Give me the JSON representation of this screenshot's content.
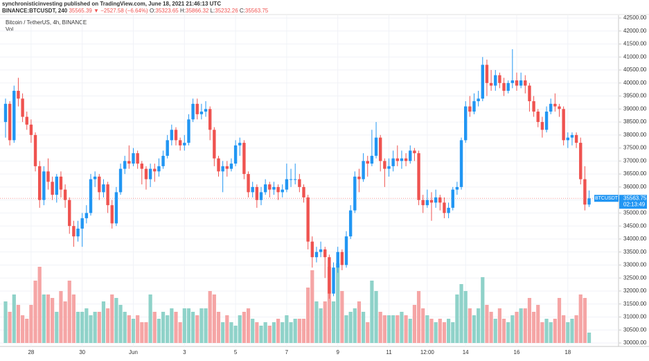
{
  "header": {
    "publisher": "synchronisticinvesting published on TradingView.com, June 18, 2021 21:46:13 UTC",
    "symbol": "BINANCE:BTCUSDT, 240",
    "change": "35565.39 ▼ −2527.58 (−6.64%)",
    "o_label": "O:",
    "o": "35323.65",
    "h_label": "H:",
    "h": "35866.32",
    "l_label": "L:",
    "l": "35232.26",
    "c_label": "C:",
    "c": "35563.75"
  },
  "chart_data": {
    "type": "candlestick",
    "title": "Bitcoin / TetherUS, 4h, BINANCE",
    "volume_label": "Vol",
    "up_color": "#2196f3",
    "down_color": "#ef5350",
    "volume_up_color": "#8fd2c9",
    "volume_down_color": "#f5a5a5",
    "grid": true,
    "price_tag": {
      "symbol": "BTCUSDT",
      "price": "35563.75",
      "countdown": "02:13:49"
    },
    "categories": [
      null,
      null,
      null,
      null,
      null,
      null,
      "28",
      null,
      null,
      null,
      null,
      null,
      null,
      null,
      null,
      null,
      null,
      null,
      "30",
      null,
      null,
      null,
      null,
      null,
      null,
      null,
      null,
      null,
      null,
      null,
      "Jun",
      null,
      null,
      null,
      null,
      null,
      null,
      null,
      null,
      null,
      null,
      null,
      "3",
      null,
      null,
      null,
      null,
      null,
      null,
      null,
      null,
      null,
      null,
      null,
      "5",
      null,
      null,
      null,
      null,
      null,
      null,
      null,
      null,
      null,
      null,
      null,
      "7",
      null,
      null,
      null,
      null,
      null,
      null,
      null,
      null,
      null,
      null,
      null,
      "9",
      null,
      null,
      null,
      null,
      null,
      null,
      null,
      null,
      null,
      null,
      null,
      "11",
      null,
      null,
      null,
      null,
      null,
      null,
      null,
      null,
      "12:00",
      null,
      null,
      null,
      null,
      null,
      null,
      null,
      null,
      "14",
      null,
      null,
      null,
      null,
      null,
      null,
      null,
      null,
      null,
      null,
      null,
      "16",
      null,
      null,
      null,
      null,
      null,
      null,
      null,
      null,
      null,
      null,
      null,
      "18",
      null,
      null,
      null,
      null,
      null
    ],
    "open": [
      38500,
      39200,
      37800,
      39700,
      39400,
      38700,
      38400,
      38000,
      36800,
      35500,
      36600,
      36200,
      35700,
      36400,
      35900,
      35500,
      34500,
      34100,
      34400,
      34800,
      35000,
      36300,
      36400,
      35800,
      36100,
      35300,
      34600,
      35800,
      36700,
      37000,
      36900,
      37300,
      36900,
      36700,
      36300,
      36700,
      36600,
      36800,
      37200,
      37800,
      38200,
      37800,
      37600,
      37700,
      38600,
      39200,
      38800,
      38900,
      39000,
      38200,
      37100,
      36600,
      36800,
      36700,
      36900,
      37600,
      37700,
      36500,
      35800,
      36000,
      35500,
      35800,
      36100,
      35900,
      36000,
      35800,
      35900,
      36300,
      36300,
      36300,
      36000,
      35600,
      33900,
      33300,
      33500,
      33600,
      33300,
      31900,
      32900,
      33500,
      33000,
      34100,
      35100,
      36400,
      36300,
      37000,
      36900,
      37200,
      37900,
      37000,
      36700,
      36800,
      37100,
      37000,
      37100,
      37000,
      37400,
      37300,
      35500,
      35300,
      35500,
      35400,
      35600,
      35400,
      35000,
      35200,
      35900,
      36000,
      37800,
      39100,
      38900,
      39300,
      39400,
      40700,
      40000,
      39900,
      40300,
      40000,
      39700,
      40000,
      40100,
      39900,
      40100,
      39900,
      39300,
      38900,
      38500,
      38200,
      38900,
      39200,
      39100,
      39000,
      37800,
      37900,
      38000,
      37700,
      36300,
      35323.65
    ],
    "high": [
      39400,
      39300,
      39900,
      40200,
      39600,
      38900,
      38600,
      38100,
      37000,
      36800,
      37100,
      36400,
      36500,
      36600,
      36100,
      35600,
      34700,
      34700,
      35000,
      35300,
      36500,
      36600,
      36500,
      36300,
      36200,
      35500,
      36000,
      36900,
      37200,
      37600,
      37500,
      37400,
      37000,
      36800,
      36900,
      36900,
      37100,
      37400,
      38000,
      38400,
      38300,
      37900,
      38000,
      38800,
      39400,
      39400,
      39200,
      39300,
      39100,
      38300,
      37200,
      37000,
      37000,
      37100,
      37800,
      37900,
      37800,
      36600,
      36200,
      36100,
      36000,
      36300,
      36200,
      36200,
      36100,
      36100,
      36900,
      36700,
      36900,
      36500,
      36100,
      35700,
      34100,
      33700,
      33900,
      33700,
      33400,
      33100,
      33700,
      33600,
      34300,
      35300,
      36600,
      36700,
      37300,
      37200,
      38200,
      38500,
      38000,
      37100,
      37100,
      37400,
      37600,
      37400,
      37300,
      37600,
      37500,
      37400,
      35700,
      35900,
      35800,
      35900,
      35700,
      35600,
      35400,
      36000,
      36200,
      37900,
      39300,
      39500,
      39600,
      39700,
      41000,
      40900,
      40500,
      40500,
      40400,
      40200,
      40100,
      41300,
      40400,
      40400,
      40300,
      40000,
      39500,
      39000,
      38700,
      39100,
      39400,
      39600,
      39200,
      39100,
      38100,
      38100,
      38100,
      37900,
      36800,
      35866.32
    ],
    "low": [
      37900,
      37600,
      37700,
      39100,
      38500,
      38200,
      37700,
      36600,
      35200,
      35300,
      35900,
      35500,
      35400,
      35600,
      35200,
      34200,
      33700,
      33900,
      33700,
      34600,
      34900,
      36000,
      35500,
      35600,
      35000,
      34400,
      34500,
      35700,
      36500,
      36700,
      36800,
      36700,
      36100,
      35900,
      36000,
      36200,
      36400,
      36700,
      37100,
      37600,
      37600,
      37400,
      37400,
      37600,
      38500,
      38600,
      38600,
      38700,
      37800,
      36800,
      36400,
      35800,
      36400,
      36600,
      36800,
      37200,
      36300,
      35600,
      35600,
      35200,
      35300,
      35700,
      35600,
      35700,
      35500,
      35600,
      35800,
      36000,
      36100,
      35800,
      35400,
      33600,
      32900,
      33100,
      33300,
      32500,
      31700,
      31800,
      32700,
      32800,
      32900,
      34000,
      35000,
      35800,
      36200,
      36400,
      36800,
      37100,
      36600,
      36000,
      36400,
      36600,
      36800,
      36700,
      36800,
      36900,
      37000,
      35300,
      35000,
      35200,
      34700,
      35200,
      35100,
      34800,
      34800,
      35100,
      35700,
      35900,
      37700,
      38700,
      38800,
      39100,
      39300,
      39500,
      39700,
      39700,
      39800,
      39500,
      39600,
      39800,
      39700,
      39800,
      39600,
      38900,
      38700,
      38300,
      37900,
      38100,
      38800,
      38900,
      38700,
      37600,
      37500,
      37600,
      37500,
      36100,
      35100,
      35232.26
    ],
    "close": [
      39200,
      37800,
      39700,
      39400,
      38700,
      38400,
      38000,
      36800,
      35500,
      36600,
      36200,
      35700,
      36400,
      35900,
      35500,
      34500,
      34100,
      34400,
      34800,
      35000,
      36300,
      36400,
      35800,
      36100,
      35300,
      34600,
      35800,
      36700,
      37000,
      36900,
      37300,
      36900,
      36700,
      36300,
      36700,
      36600,
      36800,
      37200,
      37800,
      38200,
      37800,
      37600,
      37700,
      38600,
      39200,
      38800,
      38900,
      39000,
      38200,
      37100,
      36600,
      36800,
      36700,
      36900,
      37600,
      37700,
      36500,
      35800,
      36000,
      35500,
      35800,
      36100,
      35900,
      36000,
      35800,
      35900,
      36300,
      36300,
      36300,
      36000,
      35600,
      33900,
      33300,
      33500,
      33600,
      33300,
      31900,
      32900,
      33500,
      33000,
      34100,
      35100,
      36400,
      36300,
      37000,
      36900,
      37200,
      37900,
      37000,
      36700,
      36800,
      37100,
      37000,
      37100,
      37000,
      37400,
      37300,
      35500,
      35300,
      35500,
      35400,
      35600,
      35400,
      35000,
      35200,
      35900,
      36000,
      37800,
      39100,
      38900,
      39300,
      39400,
      40700,
      40000,
      39900,
      40300,
      40000,
      39700,
      40000,
      40100,
      39900,
      40100,
      39900,
      39300,
      38900,
      38500,
      38200,
      38900,
      39200,
      39100,
      39000,
      37800,
      37900,
      38000,
      37700,
      36300,
      35323.65,
      35563.75
    ],
    "volume": [
      60,
      45,
      70,
      55,
      40,
      35,
      55,
      90,
      110,
      70,
      70,
      65,
      45,
      75,
      60,
      90,
      70,
      45,
      45,
      50,
      40,
      45,
      45,
      60,
      50,
      70,
      65,
      55,
      45,
      40,
      35,
      40,
      30,
      30,
      70,
      45,
      35,
      45,
      40,
      50,
      45,
      30,
      50,
      50,
      45,
      40,
      50,
      50,
      75,
      70,
      45,
      30,
      40,
      30,
      25,
      40,
      45,
      50,
      35,
      30,
      25,
      30,
      25,
      30,
      35,
      30,
      40,
      30,
      35,
      35,
      35,
      80,
      105,
      60,
      50,
      60,
      110,
      60,
      115,
      75,
      40,
      45,
      50,
      60,
      45,
      30,
      90,
      75,
      45,
      40,
      40,
      40,
      40,
      45,
      40,
      35,
      55,
      75,
      50,
      40,
      35,
      30,
      35,
      30,
      35,
      30,
      70,
      85,
      75,
      50,
      40,
      50,
      95,
      55,
      45,
      35,
      50,
      35,
      30,
      40,
      45,
      50,
      50,
      65,
      45,
      55,
      30,
      35,
      30,
      35,
      65,
      40,
      30,
      35,
      40,
      70,
      65,
      15
    ],
    "ylim": [
      30000,
      42500
    ],
    "yticks": [
      {
        "value": 30000,
        "label": "30000.00"
      },
      {
        "value": 30500,
        "label": "30500.00"
      },
      {
        "value": 31000,
        "label": "31000.00"
      },
      {
        "value": 31500,
        "label": "31500.00"
      },
      {
        "value": 32000,
        "label": "32000.00"
      },
      {
        "value": 32500,
        "label": "32500.00"
      },
      {
        "value": 33000,
        "label": "33000.00"
      },
      {
        "value": 33500,
        "label": "33500.00"
      },
      {
        "value": 34000,
        "label": "34000.00"
      },
      {
        "value": 34500,
        "label": "34500.00"
      },
      {
        "value": 35000,
        "label": "35000.00"
      },
      {
        "value": 35500,
        "label": "35500.00"
      },
      {
        "value": 36000,
        "label": "36000.00"
      },
      {
        "value": 36500,
        "label": "36500.00"
      },
      {
        "value": 37000,
        "label": "37000.00"
      },
      {
        "value": 37500,
        "label": "37500.00"
      },
      {
        "value": 38000,
        "label": "38000.00"
      },
      {
        "value": 38500,
        "label": "38500.00"
      },
      {
        "value": 39000,
        "label": "39000.00"
      },
      {
        "value": 39500,
        "label": "39500.00"
      },
      {
        "value": 40000,
        "label": "40000.00"
      },
      {
        "value": 40500,
        "label": "40500.00"
      },
      {
        "value": 41000,
        "label": "41000.00"
      },
      {
        "value": 41500,
        "label": "41500.00"
      },
      {
        "value": 42000,
        "label": "42000.00"
      },
      {
        "value": 42500,
        "label": "42500.00"
      }
    ]
  }
}
